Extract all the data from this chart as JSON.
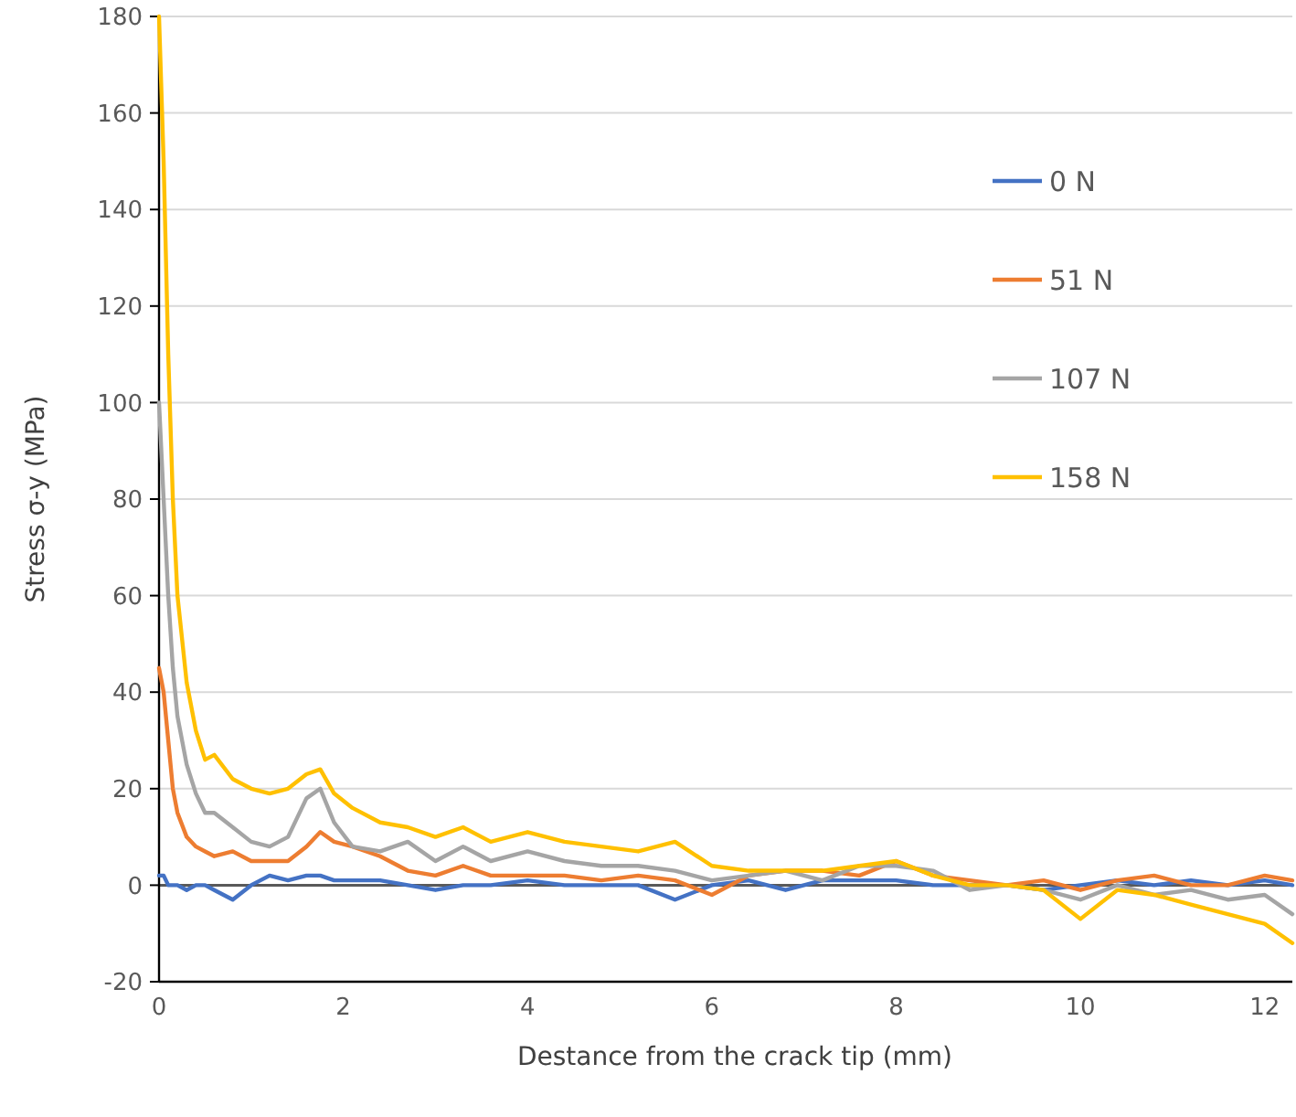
{
  "chart_data": {
    "type": "line",
    "xlabel": "Destance from the crack tip (mm)",
    "ylabel": "Stress σ-y (MPa)",
    "x": [
      0,
      0.05,
      0.1,
      0.15,
      0.2,
      0.3,
      0.4,
      0.5,
      0.6,
      0.8,
      1.0,
      1.2,
      1.4,
      1.6,
      1.75,
      1.9,
      2.1,
      2.4,
      2.7,
      3.0,
      3.3,
      3.6,
      4.0,
      4.4,
      4.8,
      5.2,
      5.6,
      6.0,
      6.4,
      6.8,
      7.2,
      7.6,
      8.0,
      8.4,
      8.8,
      9.2,
      9.6,
      10.0,
      10.4,
      10.8,
      11.2,
      11.6,
      12.0,
      12.3
    ],
    "series": [
      {
        "name": "0 N",
        "color": "#4472c4",
        "values": [
          2,
          2,
          0,
          0,
          0,
          -1,
          0,
          0,
          -1,
          -3,
          0,
          2,
          1,
          2,
          2,
          1,
          1,
          1,
          0,
          -1,
          0,
          0,
          1,
          0,
          0,
          0,
          -3,
          0,
          1,
          -1,
          1,
          1,
          1,
          0,
          0,
          0,
          -1,
          0,
          1,
          0,
          1,
          0,
          1,
          0
        ]
      },
      {
        "name": "51 N",
        "color": "#ed7d31",
        "values": [
          45,
          40,
          30,
          20,
          15,
          10,
          8,
          7,
          6,
          7,
          5,
          5,
          5,
          8,
          11,
          9,
          8,
          6,
          3,
          2,
          4,
          2,
          2,
          2,
          1,
          2,
          1,
          -2,
          2,
          3,
          3,
          2,
          5,
          2,
          1,
          0,
          1,
          -1,
          1,
          2,
          0,
          0,
          2,
          1
        ]
      },
      {
        "name": "107 N",
        "color": "#a5a5a5",
        "values": [
          100,
          80,
          60,
          45,
          35,
          25,
          19,
          15,
          15,
          12,
          9,
          8,
          10,
          18,
          20,
          13,
          8,
          7,
          9,
          5,
          8,
          5,
          7,
          5,
          4,
          4,
          3,
          1,
          2,
          3,
          1,
          4,
          4,
          3,
          -1,
          0,
          -1,
          -3,
          0,
          -2,
          -1,
          -3,
          -2,
          -6
        ]
      },
      {
        "name": "158 N",
        "color": "#ffc000",
        "values": [
          180,
          150,
          110,
          80,
          60,
          42,
          32,
          26,
          27,
          22,
          20,
          19,
          20,
          23,
          24,
          19,
          16,
          13,
          12,
          10,
          12,
          9,
          11,
          9,
          8,
          7,
          9,
          4,
          3,
          3,
          3,
          4,
          5,
          2,
          0,
          0,
          -1,
          -7,
          -1,
          -2,
          -4,
          -6,
          -8,
          -12
        ]
      }
    ],
    "xlim": [
      0,
      12.3
    ],
    "xticks": [
      0,
      2,
      4,
      6,
      8,
      10,
      12
    ],
    "ylim": [
      -20,
      180
    ],
    "yticks": [
      -20,
      0,
      20,
      40,
      60,
      80,
      100,
      120,
      140,
      160,
      180
    ],
    "grid": "y",
    "legend": "top right",
    "line_style": "solid",
    "marker": "none"
  }
}
